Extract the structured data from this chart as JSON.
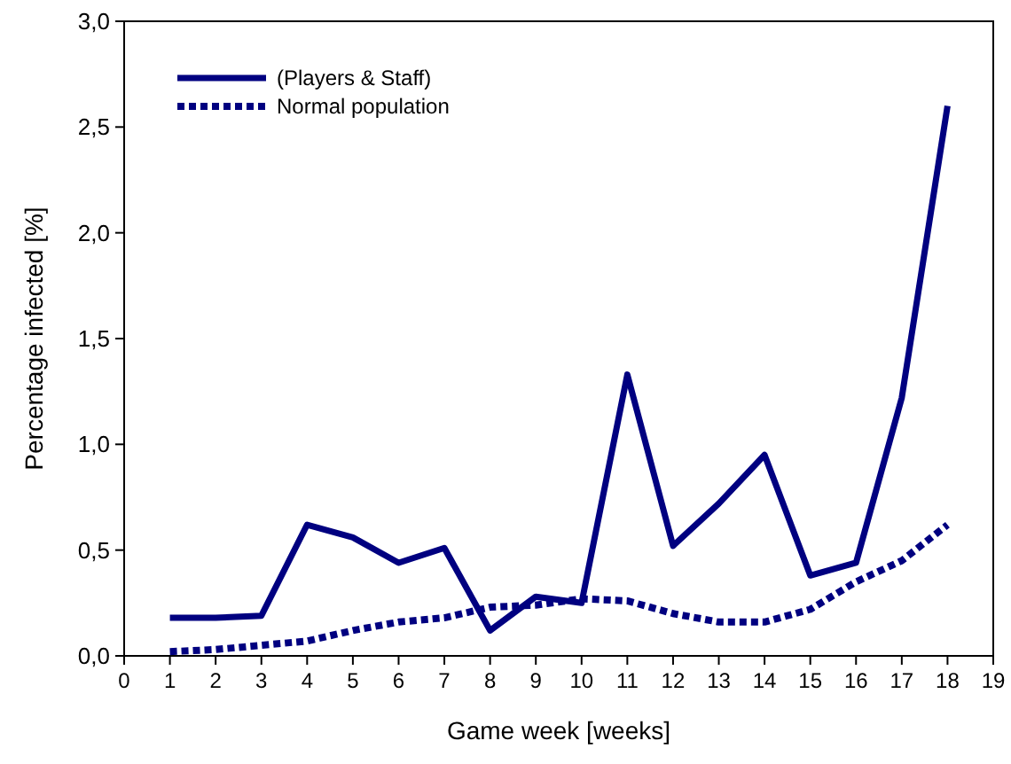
{
  "chart_data": {
    "type": "line",
    "xlabel": "Game week [weeks]",
    "ylabel": "Percentage infected [%]",
    "x": [
      1,
      2,
      3,
      4,
      5,
      6,
      7,
      8,
      9,
      10,
      11,
      12,
      13,
      14,
      15,
      16,
      17,
      18
    ],
    "series": [
      {
        "name": "(Players & Staff)",
        "color": "#000080",
        "line_style": "solid",
        "values": [
          0.18,
          0.18,
          0.19,
          0.62,
          0.56,
          0.44,
          0.51,
          0.12,
          0.28,
          0.25,
          1.33,
          0.52,
          0.72,
          0.95,
          0.38,
          0.44,
          1.22,
          2.6
        ]
      },
      {
        "name": "Normal population",
        "color": "#000080",
        "line_style": "dotted",
        "values": [
          0.02,
          0.03,
          0.05,
          0.07,
          0.12,
          0.16,
          0.18,
          0.23,
          0.24,
          0.27,
          0.26,
          0.2,
          0.16,
          0.16,
          0.22,
          0.35,
          0.45,
          0.62
        ]
      }
    ],
    "xlim": [
      0,
      19
    ],
    "xticks": [
      0,
      1,
      2,
      3,
      4,
      5,
      6,
      7,
      8,
      9,
      10,
      11,
      12,
      13,
      14,
      15,
      16,
      17,
      18,
      19
    ],
    "ylim": [
      0,
      3
    ],
    "yticks": [
      {
        "value": 0,
        "label": "0,0"
      },
      {
        "value": 0.5,
        "label": "0,5"
      },
      {
        "value": 1,
        "label": "1,0"
      },
      {
        "value": 1.5,
        "label": "1,5"
      },
      {
        "value": 2,
        "label": "2,0"
      },
      {
        "value": 2.5,
        "label": "2,5"
      },
      {
        "value": 3,
        "label": "3,0"
      }
    ],
    "grid": false,
    "legend": "top left"
  }
}
